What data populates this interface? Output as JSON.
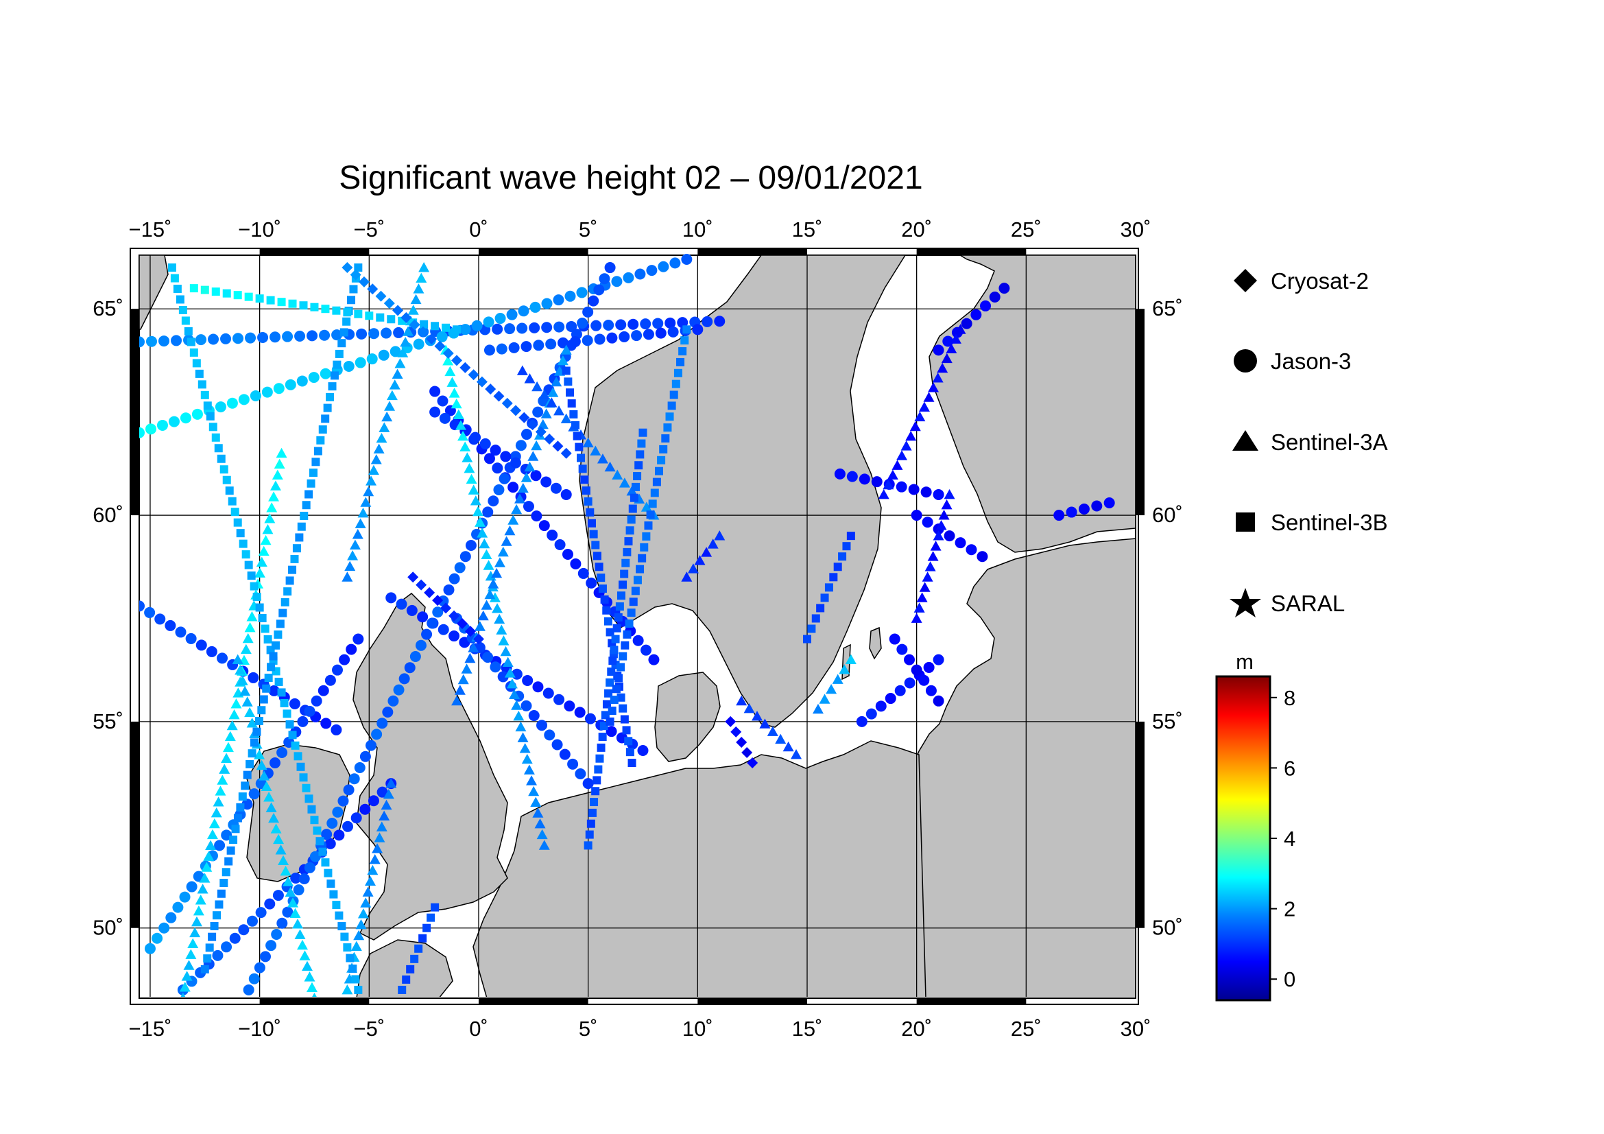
{
  "title": "Significant wave height 02 – 09/01/2021",
  "map": {
    "lon_range": [
      -15.5,
      30
    ],
    "lat_range": [
      48.3,
      66.3
    ],
    "lon_ticks": [
      -15,
      -10,
      -5,
      0,
      5,
      10,
      15,
      20,
      25,
      30
    ],
    "lon_tick_labels": [
      "−15˚",
      "−10˚",
      "−5˚",
      "0˚",
      "5˚",
      "10˚",
      "15˚",
      "20˚",
      "25˚",
      "30˚"
    ],
    "lat_ticks": [
      50,
      55,
      60,
      65
    ],
    "lat_tick_labels": [
      "50˚",
      "55˚",
      "60˚",
      "65˚"
    ],
    "land_color": "#c0c0c0",
    "sea_color": "#ffffff",
    "grid": true
  },
  "legend": {
    "items": [
      {
        "label": "Cryosat-2",
        "marker": "diamond"
      },
      {
        "label": "Jason-3",
        "marker": "circle"
      },
      {
        "label": "Sentinel-3A",
        "marker": "triangle"
      },
      {
        "label": "Sentinel-3B",
        "marker": "square"
      },
      {
        "label": "SARAL",
        "marker": "star"
      }
    ]
  },
  "colorbar": {
    "unit": "m",
    "range": [
      -0.6,
      8.6
    ],
    "ticks": [
      0,
      2,
      4,
      6,
      8
    ],
    "tick_labels": [
      "0",
      "2",
      "4",
      "6",
      "8"
    ],
    "colormap": [
      "#00008f",
      "#0000ff",
      "#0080ff",
      "#00ffff",
      "#80ff80",
      "#ffff00",
      "#ff8000",
      "#ff0000",
      "#800000"
    ]
  },
  "chart_data": {
    "type": "scatter",
    "title": "Significant wave height 02 – 09/01/2021",
    "x_label": "",
    "y_label": "",
    "series": [
      {
        "name": "Jason-3",
        "marker": "circle",
        "tracks": [
          {
            "from": [
              -15.5,
              64.2
            ],
            "to": [
              11,
              64.7
            ],
            "hs": [
              1.8,
              1.0
            ]
          },
          {
            "from": [
              -15.5,
              62.0
            ],
            "to": [
              9.5,
              66.2
            ],
            "hs": [
              2.8,
              1.5
            ]
          },
          {
            "from": [
              -15.5,
              57.8
            ],
            "to": [
              -6.5,
              54.8
            ],
            "hs": [
              1.3,
              0.8
            ]
          },
          {
            "from": [
              -15,
              49.5
            ],
            "to": [
              -5.5,
              57.0
            ],
            "hs": [
              2.0,
              0.8
            ]
          },
          {
            "from": [
              -13.5,
              48.5
            ],
            "to": [
              -4,
              53.5
            ],
            "hs": [
              1.5,
              0.8
            ]
          },
          {
            "from": [
              -4,
              58.0
            ],
            "to": [
              7.5,
              54.3
            ],
            "hs": [
              1.0,
              0.8
            ]
          },
          {
            "from": [
              -2,
              63.0
            ],
            "to": [
              8,
              56.5
            ],
            "hs": [
              0.9,
              0.8
            ]
          },
          {
            "from": [
              -10.5,
              48.5
            ],
            "to": [
              6,
              66.0
            ],
            "hs": [
              1.5,
              1.2
            ]
          },
          {
            "from": [
              -2,
              62.5
            ],
            "to": [
              4,
              60.5
            ],
            "hs": [
              1.0,
              0.9
            ]
          },
          {
            "from": [
              -1,
              57.5
            ],
            "to": [
              5,
              53.5
            ],
            "hs": [
              1.3,
              1.1
            ]
          },
          {
            "from": [
              17.5,
              55.0
            ],
            "to": [
              21,
              56.5
            ],
            "hs": [
              0.8,
              0.6
            ]
          },
          {
            "from": [
              19,
              57.0
            ],
            "to": [
              21,
              55.5
            ],
            "hs": [
              0.6,
              0.5
            ]
          },
          {
            "from": [
              21,
              64.0
            ],
            "to": [
              24,
              65.5
            ],
            "hs": [
              0.5,
              0.4
            ]
          },
          {
            "from": [
              16.5,
              61.0
            ],
            "to": [
              21,
              60.5
            ],
            "hs": [
              0.6,
              0.5
            ]
          },
          {
            "from": [
              26.5,
              60.0
            ],
            "to": [
              28.8,
              60.3
            ],
            "hs": [
              0.5,
              0.5
            ]
          },
          {
            "from": [
              20,
              60.0
            ],
            "to": [
              23,
              59.0
            ],
            "hs": [
              0.5,
              0.5
            ]
          },
          {
            "from": [
              0.5,
              64.0
            ],
            "to": [
              10,
              64.5
            ],
            "hs": [
              1.3,
              1.0
            ]
          }
        ]
      },
      {
        "name": "Sentinel-3A",
        "marker": "triangle",
        "tracks": [
          {
            "from": [
              -13.5,
              48.3
            ],
            "to": [
              -9,
              61.5
            ],
            "hs": [
              2.3,
              2.8
            ]
          },
          {
            "from": [
              -7.5,
              48.3
            ],
            "to": [
              -11,
              56.5
            ],
            "hs": [
              2.5,
              2.2
            ]
          },
          {
            "from": [
              -2.5,
              66.0
            ],
            "to": [
              -6,
              58.5
            ],
            "hs": [
              2.2,
              1.8
            ]
          },
          {
            "from": [
              -1.5,
              64.0
            ],
            "to": [
              3,
              52.0
            ],
            "hs": [
              2.8,
              1.6
            ]
          },
          {
            "from": [
              4,
              64.0
            ],
            "to": [
              -1,
              55.5
            ],
            "hs": [
              1.9,
              1.6
            ]
          },
          {
            "from": [
              -4,
              53.5
            ],
            "to": [
              -6,
              48.5
            ],
            "hs": [
              1.5,
              2.2
            ]
          },
          {
            "from": [
              9.5,
              58.5
            ],
            "to": [
              11,
              59.5
            ],
            "hs": [
              0.9,
              0.9
            ]
          },
          {
            "from": [
              12,
              55.5
            ],
            "to": [
              14.5,
              54.2
            ],
            "hs": [
              1.0,
              1.3
            ]
          },
          {
            "from": [
              15.5,
              55.3
            ],
            "to": [
              17,
              56.5
            ],
            "hs": [
              1.7,
              2.3
            ]
          },
          {
            "from": [
              18.5,
              60.5
            ],
            "to": [
              22,
              64.5
            ],
            "hs": [
              0.7,
              0.5
            ]
          },
          {
            "from": [
              20,
              57.5
            ],
            "to": [
              21.5,
              60.5
            ],
            "hs": [
              0.6,
              0.6
            ]
          },
          {
            "from": [
              8,
              60.0
            ],
            "to": [
              2,
              63.5
            ],
            "hs": [
              1.8,
              1.2
            ]
          }
        ]
      },
      {
        "name": "Sentinel-3B",
        "marker": "square",
        "tracks": [
          {
            "from": [
              -14,
              66.0
            ],
            "to": [
              -5.5,
              48.5
            ],
            "hs": [
              2.3,
              2.0
            ]
          },
          {
            "from": [
              -5.5,
              66.0
            ],
            "to": [
              -12.5,
              49.0
            ],
            "hs": [
              2.0,
              1.8
            ]
          },
          {
            "from": [
              4,
              63.5
            ],
            "to": [
              7,
              54.0
            ],
            "hs": [
              1.2,
              1.2
            ]
          },
          {
            "from": [
              7.5,
              62.0
            ],
            "to": [
              5,
              52.0
            ],
            "hs": [
              1.4,
              1.2
            ]
          },
          {
            "from": [
              9.5,
              64.5
            ],
            "to": [
              6,
              55.0
            ],
            "hs": [
              1.7,
              1.3
            ]
          },
          {
            "from": [
              -2,
              50.5
            ],
            "to": [
              -3.5,
              48.5
            ],
            "hs": [
              1.2,
              1.2
            ]
          },
          {
            "from": [
              15,
              57.0
            ],
            "to": [
              17,
              59.5
            ],
            "hs": [
              1.2,
              1.1
            ]
          },
          {
            "from": [
              -13,
              65.5
            ],
            "to": [
              -1,
              64.5
            ],
            "hs": [
              2.9,
              2.2
            ]
          }
        ]
      },
      {
        "name": "Cryosat-2",
        "marker": "diamond",
        "tracks": [
          {
            "from": [
              -6,
              66.0
            ],
            "to": [
              4,
              61.5
            ],
            "hs": [
              1.8,
              1.2
            ]
          },
          {
            "from": [
              11.5,
              55.0
            ],
            "to": [
              12.5,
              54.0
            ],
            "hs": [
              0.5,
              0.5
            ]
          },
          {
            "from": [
              -3,
              58.5
            ],
            "to": [
              0,
              57.0
            ],
            "hs": [
              0.8,
              0.8
            ]
          }
        ]
      },
      {
        "name": "SARAL",
        "marker": "star",
        "tracks": []
      }
    ],
    "xlim": [
      -15.5,
      30
    ],
    "ylim": [
      48.3,
      66.3
    ],
    "color_unit": "m",
    "color_range": [
      -0.6,
      8.6
    ]
  }
}
